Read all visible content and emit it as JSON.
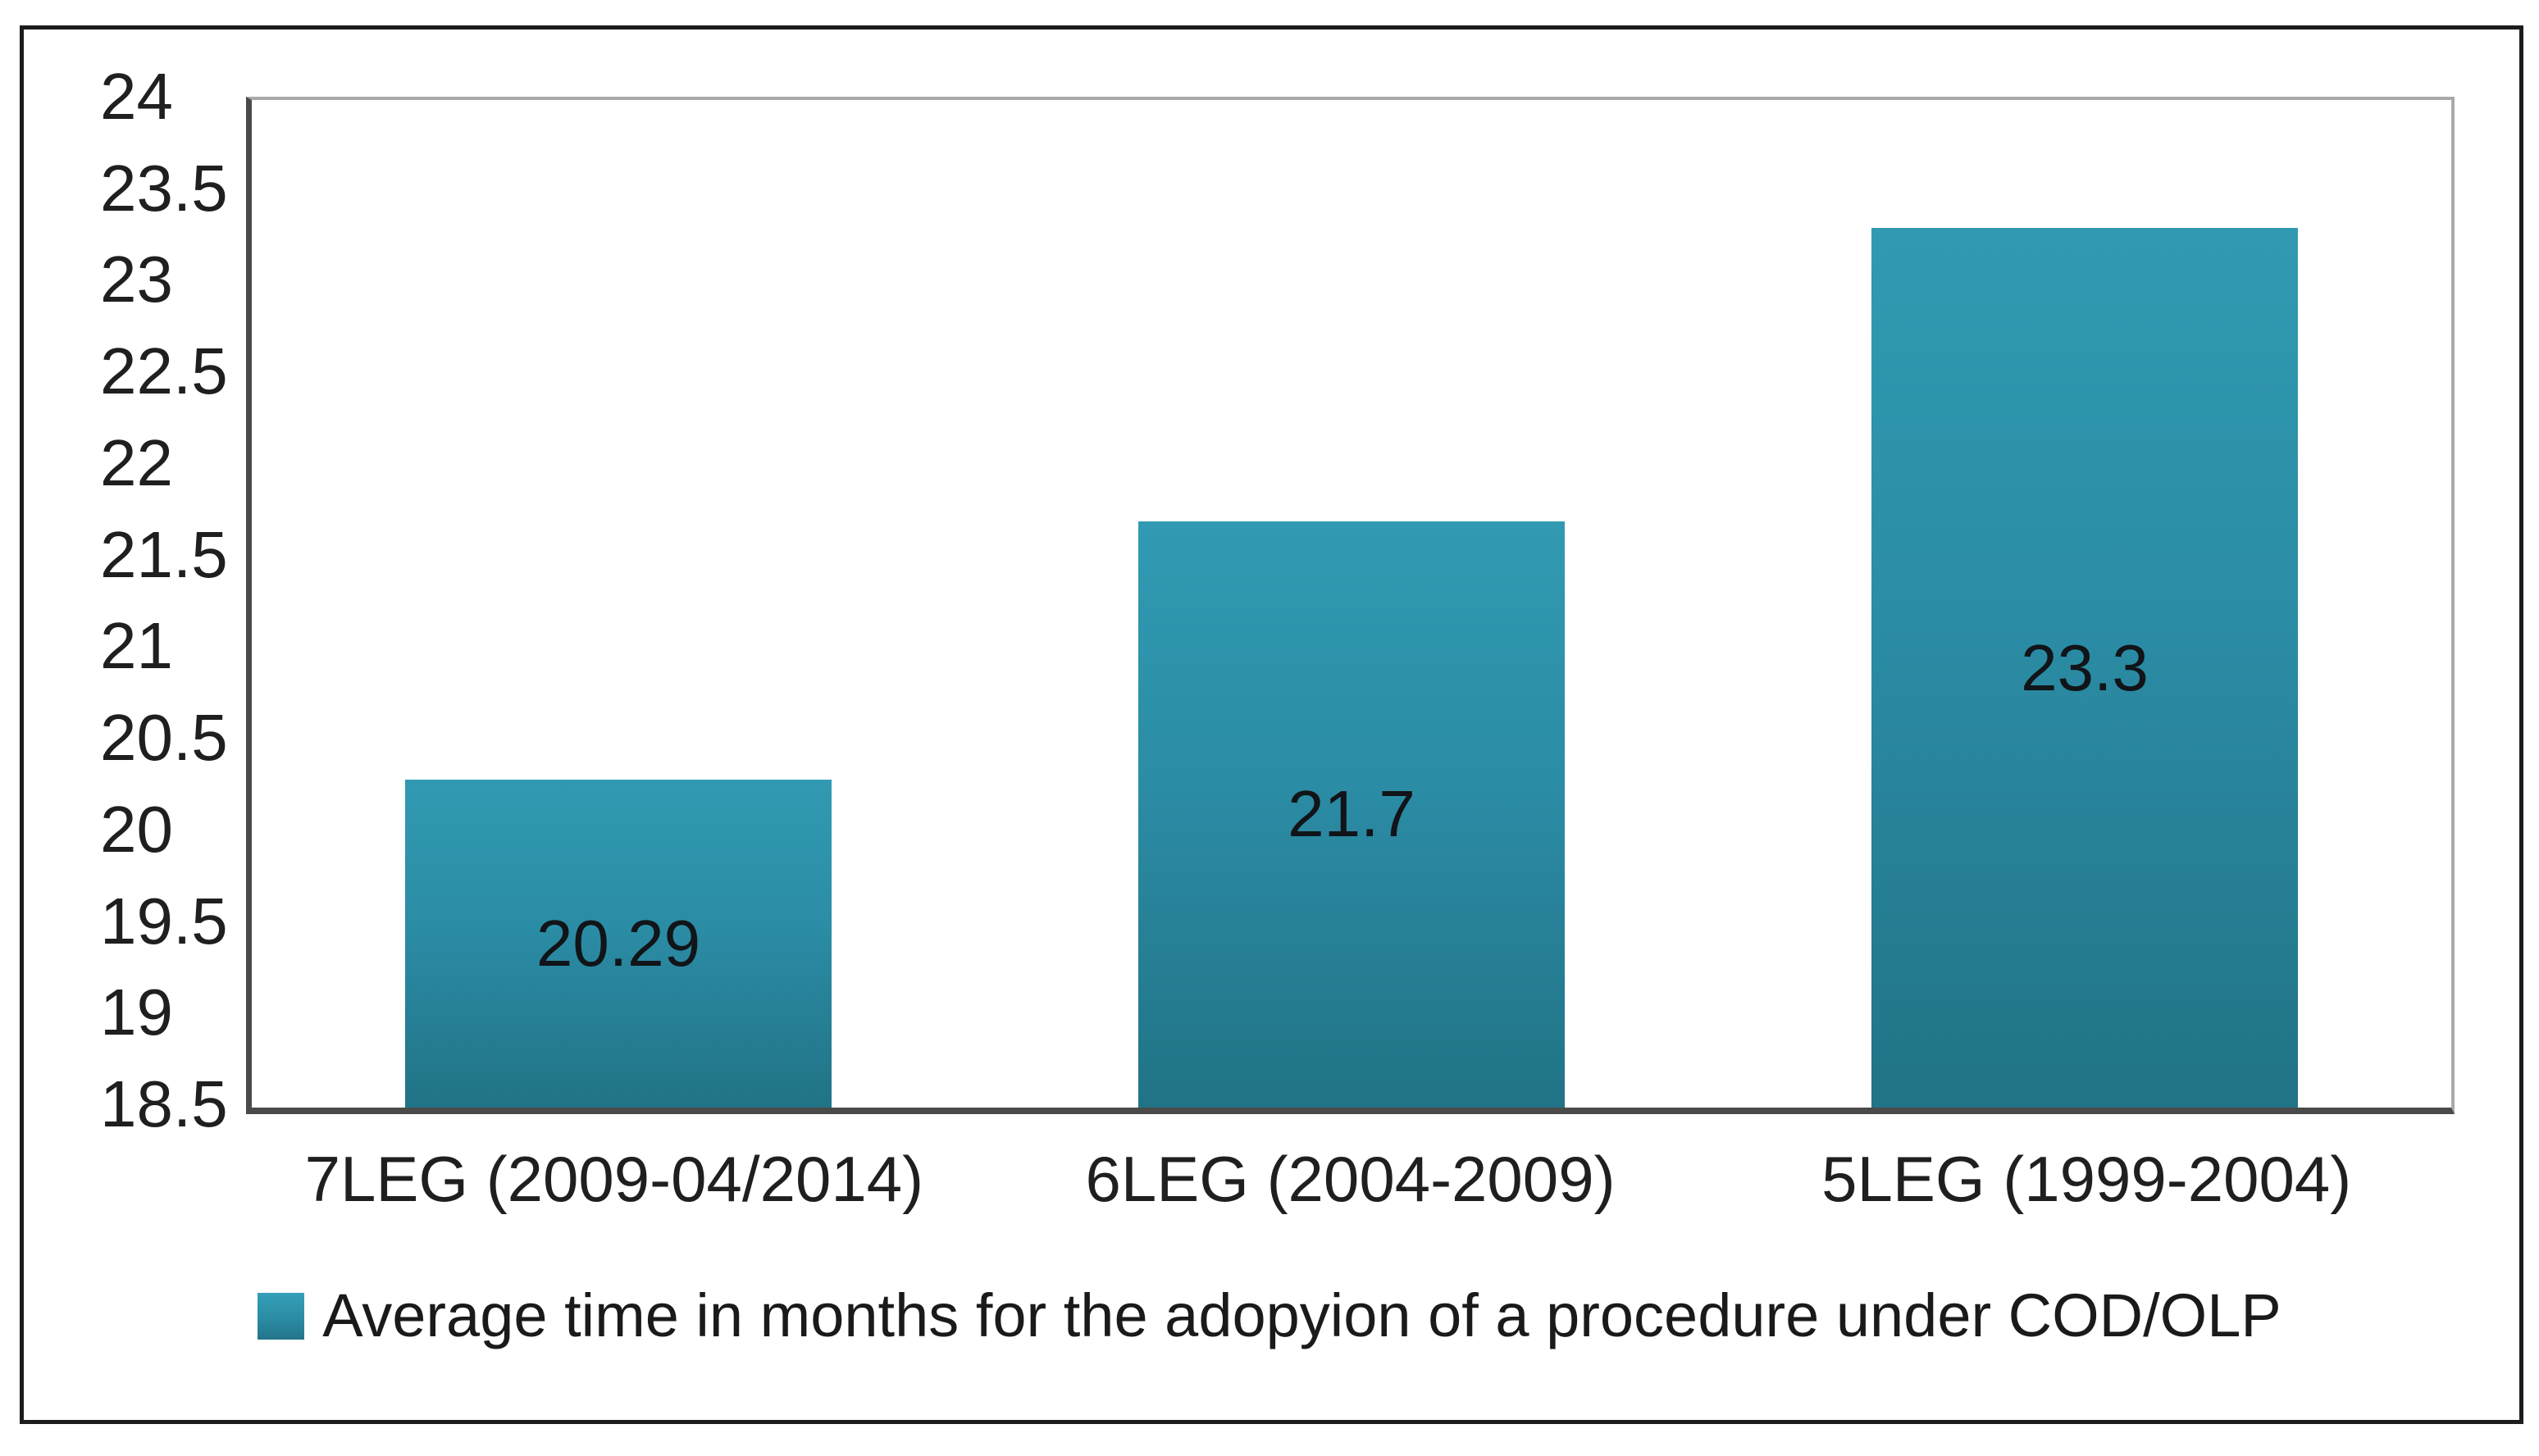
{
  "chart_data": {
    "type": "bar",
    "title": "",
    "categories": [
      "7LEG (2009-04/2014)",
      "6LEG (2004-2009)",
      "5LEG (1999-2004)"
    ],
    "values": [
      20.29,
      21.7,
      23.3
    ],
    "data_labels": [
      "20.29",
      "21.7",
      "23.3"
    ],
    "series_name": "Average time in months for the adopyion of a procedure under COD/OLP",
    "xlabel": "",
    "ylabel": "",
    "ylim": [
      18.5,
      24
    ],
    "ytick_step": 0.5,
    "yticks": [
      "24",
      "23.5",
      "23",
      "22.5",
      "22",
      "21.5",
      "21",
      "20.5",
      "20",
      "19.5",
      "19",
      "18.5"
    ],
    "grid": false,
    "legend_position": "bottom",
    "bar_color_top": "#319ab2",
    "bar_color_bottom": "#217386"
  },
  "legend": {
    "label": "Average time in months for the adopyion of a procedure under COD/OLP",
    "swatch_color": "#2b8ca5"
  },
  "frame": {
    "outer_border_color": "#1c1c1c",
    "axis_line_color": "#4a4a4a",
    "plot_border_color": "#a9a9a9",
    "background": "#ffffff"
  }
}
